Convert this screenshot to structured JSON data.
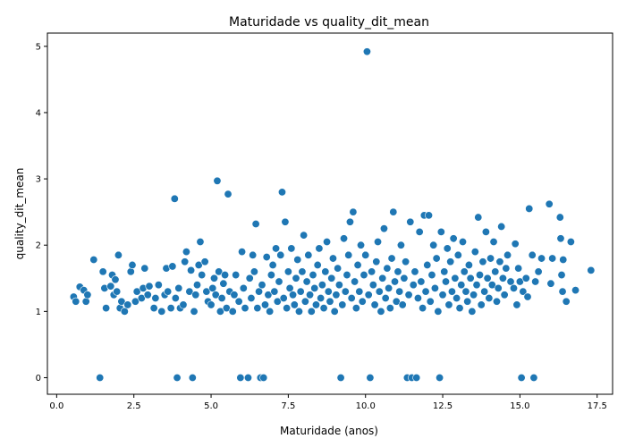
{
  "chart_data": {
    "type": "scatter",
    "title": "Maturidade vs quality_dit_mean",
    "xlabel": "Maturidade (anos)",
    "ylabel": "quality_dit_mean",
    "xlim": [
      -0.3,
      18.0
    ],
    "ylim": [
      -0.25,
      5.2
    ],
    "xticks": [
      0.0,
      2.5,
      5.0,
      7.5,
      10.0,
      12.5,
      15.0,
      17.5
    ],
    "xtick_labels": [
      "0.0",
      "2.5",
      "5.0",
      "7.5",
      "10.0",
      "12.5",
      "15.0",
      "17.5"
    ],
    "yticks": [
      0,
      1,
      2,
      3,
      4,
      5
    ],
    "ytick_labels": [
      "0",
      "1",
      "2",
      "3",
      "4",
      "5"
    ],
    "grid": false,
    "legend": "none",
    "point_color": "#1f77b4",
    "points": [
      [
        0.55,
        1.22
      ],
      [
        0.62,
        1.15
      ],
      [
        0.75,
        1.37
      ],
      [
        0.88,
        1.32
      ],
      [
        0.95,
        1.15
      ],
      [
        1.0,
        1.25
      ],
      [
        1.2,
        1.78
      ],
      [
        1.4,
        0.0
      ],
      [
        1.5,
        1.6
      ],
      [
        1.55,
        1.35
      ],
      [
        1.6,
        1.05
      ],
      [
        1.75,
        1.38
      ],
      [
        1.8,
        1.55
      ],
      [
        1.85,
        1.25
      ],
      [
        1.9,
        1.48
      ],
      [
        1.95,
        1.3
      ],
      [
        2.0,
        1.85
      ],
      [
        2.05,
        1.05
      ],
      [
        2.1,
        1.15
      ],
      [
        2.2,
        1.0
      ],
      [
        2.3,
        1.1
      ],
      [
        2.4,
        1.6
      ],
      [
        2.45,
        1.7
      ],
      [
        2.55,
        1.15
      ],
      [
        2.6,
        1.3
      ],
      [
        2.75,
        1.2
      ],
      [
        2.8,
        1.35
      ],
      [
        2.85,
        1.65
      ],
      [
        2.95,
        1.25
      ],
      [
        3.0,
        1.38
      ],
      [
        3.15,
        1.05
      ],
      [
        3.2,
        1.2
      ],
      [
        3.3,
        1.4
      ],
      [
        3.4,
        1.0
      ],
      [
        3.5,
        1.25
      ],
      [
        3.55,
        1.65
      ],
      [
        3.6,
        1.3
      ],
      [
        3.7,
        1.05
      ],
      [
        3.75,
        1.68
      ],
      [
        3.82,
        2.7
      ],
      [
        3.85,
        1.2
      ],
      [
        3.9,
        0.0
      ],
      [
        3.95,
        1.35
      ],
      [
        4.0,
        1.05
      ],
      [
        4.1,
        1.1
      ],
      [
        4.15,
        1.75
      ],
      [
        4.2,
        1.9
      ],
      [
        4.3,
        1.3
      ],
      [
        4.35,
        1.62
      ],
      [
        4.4,
        0.0
      ],
      [
        4.45,
        1.0
      ],
      [
        4.5,
        1.25
      ],
      [
        4.55,
        1.4
      ],
      [
        4.6,
        1.7
      ],
      [
        4.65,
        2.05
      ],
      [
        4.7,
        1.55
      ],
      [
        4.8,
        1.75
      ],
      [
        4.85,
        1.3
      ],
      [
        4.9,
        1.15
      ],
      [
        5.0,
        1.1
      ],
      [
        5.05,
        1.35
      ],
      [
        5.1,
        1.5
      ],
      [
        5.15,
        1.25
      ],
      [
        5.2,
        2.97
      ],
      [
        5.25,
        1.6
      ],
      [
        5.3,
        1.0
      ],
      [
        5.35,
        1.2
      ],
      [
        5.4,
        1.42
      ],
      [
        5.45,
        1.55
      ],
      [
        5.5,
        1.05
      ],
      [
        5.55,
        2.77
      ],
      [
        5.6,
        1.3
      ],
      [
        5.7,
        1.0
      ],
      [
        5.75,
        1.25
      ],
      [
        5.8,
        1.55
      ],
      [
        5.9,
        1.15
      ],
      [
        5.95,
        0.0
      ],
      [
        6.0,
        1.9
      ],
      [
        6.05,
        1.35
      ],
      [
        6.1,
        1.05
      ],
      [
        6.2,
        0.0
      ],
      [
        6.25,
        1.5
      ],
      [
        6.3,
        1.2
      ],
      [
        6.35,
        1.85
      ],
      [
        6.4,
        1.6
      ],
      [
        6.45,
        2.32
      ],
      [
        6.5,
        1.05
      ],
      [
        6.55,
        1.3
      ],
      [
        6.6,
        0.0
      ],
      [
        6.65,
        1.4
      ],
      [
        6.7,
        0.0
      ],
      [
        6.75,
        1.1
      ],
      [
        6.8,
        1.82
      ],
      [
        6.85,
        1.25
      ],
      [
        6.9,
        1.0
      ],
      [
        6.95,
        1.55
      ],
      [
        7.0,
        1.7
      ],
      [
        7.05,
        1.3
      ],
      [
        7.1,
        1.95
      ],
      [
        7.15,
        1.15
      ],
      [
        7.2,
        1.45
      ],
      [
        7.25,
        1.85
      ],
      [
        7.3,
        2.8
      ],
      [
        7.35,
        1.2
      ],
      [
        7.4,
        2.35
      ],
      [
        7.45,
        1.05
      ],
      [
        7.5,
        1.6
      ],
      [
        7.55,
        1.35
      ],
      [
        7.6,
        1.95
      ],
      [
        7.65,
        1.25
      ],
      [
        7.7,
        1.1
      ],
      [
        7.75,
        1.5
      ],
      [
        7.8,
        1.78
      ],
      [
        7.85,
        1.0
      ],
      [
        7.9,
        1.3
      ],
      [
        7.95,
        1.6
      ],
      [
        8.0,
        2.15
      ],
      [
        8.05,
        1.15
      ],
      [
        8.1,
        1.45
      ],
      [
        8.15,
        1.85
      ],
      [
        8.2,
        1.25
      ],
      [
        8.25,
        1.0
      ],
      [
        8.3,
        1.55
      ],
      [
        8.35,
        1.35
      ],
      [
        8.4,
        1.1
      ],
      [
        8.45,
        1.7
      ],
      [
        8.5,
        1.95
      ],
      [
        8.55,
        1.2
      ],
      [
        8.6,
        1.4
      ],
      [
        8.65,
        1.05
      ],
      [
        8.7,
        1.6
      ],
      [
        8.75,
        2.05
      ],
      [
        8.8,
        1.3
      ],
      [
        8.85,
        1.15
      ],
      [
        8.9,
        1.5
      ],
      [
        8.95,
        1.8
      ],
      [
        9.0,
        1.0
      ],
      [
        9.05,
        1.25
      ],
      [
        9.1,
        1.65
      ],
      [
        9.15,
        1.4
      ],
      [
        9.2,
        0.0
      ],
      [
        9.25,
        1.1
      ],
      [
        9.3,
        2.1
      ],
      [
        9.35,
        1.3
      ],
      [
        9.4,
        1.55
      ],
      [
        9.45,
        1.85
      ],
      [
        9.5,
        2.35
      ],
      [
        9.55,
        1.2
      ],
      [
        9.6,
        2.5
      ],
      [
        9.65,
        1.45
      ],
      [
        9.7,
        1.05
      ],
      [
        9.75,
        1.7
      ],
      [
        9.8,
        1.3
      ],
      [
        9.85,
        2.0
      ],
      [
        9.9,
        1.15
      ],
      [
        9.95,
        1.55
      ],
      [
        10.0,
        1.85
      ],
      [
        10.05,
        4.92
      ],
      [
        10.1,
        1.25
      ],
      [
        10.15,
        0.0
      ],
      [
        10.2,
        1.6
      ],
      [
        10.25,
        1.4
      ],
      [
        10.3,
        1.1
      ],
      [
        10.35,
        1.75
      ],
      [
        10.4,
        2.05
      ],
      [
        10.45,
        1.3
      ],
      [
        10.5,
        1.0
      ],
      [
        10.55,
        1.5
      ],
      [
        10.6,
        2.25
      ],
      [
        10.65,
        1.2
      ],
      [
        10.7,
        1.65
      ],
      [
        10.75,
        1.35
      ],
      [
        10.8,
        1.05
      ],
      [
        10.85,
        1.8
      ],
      [
        10.9,
        2.5
      ],
      [
        10.95,
        1.45
      ],
      [
        11.0,
        1.15
      ],
      [
        11.05,
        1.6
      ],
      [
        11.1,
        1.3
      ],
      [
        11.15,
        2.0
      ],
      [
        11.2,
        1.1
      ],
      [
        11.25,
        1.5
      ],
      [
        11.3,
        1.75
      ],
      [
        11.35,
        0.0
      ],
      [
        11.4,
        1.25
      ],
      [
        11.45,
        2.35
      ],
      [
        11.5,
        0.0
      ],
      [
        11.55,
        1.4
      ],
      [
        11.6,
        1.6
      ],
      [
        11.65,
        0.0
      ],
      [
        11.7,
        1.2
      ],
      [
        11.75,
        2.2
      ],
      [
        11.8,
        1.45
      ],
      [
        11.85,
        1.05
      ],
      [
        11.9,
        2.45
      ],
      [
        11.95,
        1.3
      ],
      [
        12.0,
        1.7
      ],
      [
        12.05,
        2.45
      ],
      [
        12.1,
        1.15
      ],
      [
        12.15,
        1.55
      ],
      [
        12.2,
        2.0
      ],
      [
        12.25,
        1.35
      ],
      [
        12.3,
        1.8
      ],
      [
        12.35,
        1.0
      ],
      [
        12.4,
        0.0
      ],
      [
        12.45,
        2.2
      ],
      [
        12.5,
        1.25
      ],
      [
        12.55,
        1.6
      ],
      [
        12.6,
        1.45
      ],
      [
        12.65,
        1.95
      ],
      [
        12.7,
        1.1
      ],
      [
        12.75,
        1.75
      ],
      [
        12.8,
        1.3
      ],
      [
        12.85,
        2.1
      ],
      [
        12.9,
        1.5
      ],
      [
        12.95,
        1.2
      ],
      [
        13.0,
        1.85
      ],
      [
        13.05,
        1.05
      ],
      [
        13.1,
        1.4
      ],
      [
        13.15,
        2.05
      ],
      [
        13.2,
        1.6
      ],
      [
        13.25,
        1.3
      ],
      [
        13.3,
        1.15
      ],
      [
        13.35,
        1.7
      ],
      [
        13.4,
        1.5
      ],
      [
        13.45,
        1.0
      ],
      [
        13.5,
        1.25
      ],
      [
        13.55,
        1.9
      ],
      [
        13.6,
        1.4
      ],
      [
        13.65,
        2.42
      ],
      [
        13.7,
        1.55
      ],
      [
        13.75,
        1.1
      ],
      [
        13.8,
        1.75
      ],
      [
        13.85,
        1.3
      ],
      [
        13.9,
        2.2
      ],
      [
        13.95,
        1.5
      ],
      [
        14.0,
        1.2
      ],
      [
        14.05,
        1.8
      ],
      [
        14.1,
        1.4
      ],
      [
        14.15,
        2.05
      ],
      [
        14.2,
        1.6
      ],
      [
        14.25,
        1.15
      ],
      [
        14.3,
        1.35
      ],
      [
        14.35,
        1.75
      ],
      [
        14.4,
        2.28
      ],
      [
        14.45,
        1.5
      ],
      [
        14.5,
        1.25
      ],
      [
        14.55,
        1.65
      ],
      [
        14.6,
        1.85
      ],
      [
        14.7,
        1.45
      ],
      [
        14.8,
        1.35
      ],
      [
        14.85,
        2.02
      ],
      [
        14.9,
        1.1
      ],
      [
        14.95,
        1.65
      ],
      [
        15.0,
        1.45
      ],
      [
        15.05,
        0.0
      ],
      [
        15.1,
        1.3
      ],
      [
        15.2,
        1.5
      ],
      [
        15.25,
        1.22
      ],
      [
        15.3,
        2.55
      ],
      [
        15.4,
        1.85
      ],
      [
        15.45,
        0.0
      ],
      [
        15.5,
        1.45
      ],
      [
        15.6,
        1.6
      ],
      [
        15.7,
        1.8
      ],
      [
        15.95,
        2.62
      ],
      [
        16.0,
        1.42
      ],
      [
        16.05,
        1.8
      ],
      [
        16.3,
        2.42
      ],
      [
        16.32,
        2.1
      ],
      [
        16.35,
        1.55
      ],
      [
        16.38,
        1.3
      ],
      [
        16.4,
        1.78
      ],
      [
        16.5,
        1.15
      ],
      [
        16.65,
        2.05
      ],
      [
        16.8,
        1.32
      ],
      [
        17.3,
        1.62
      ]
    ]
  }
}
